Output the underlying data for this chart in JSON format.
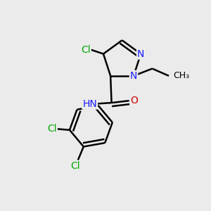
{
  "background_color": "#ebebeb",
  "bond_color": "#000000",
  "bond_width": 1.8,
  "atom_colors": {
    "C": "#000000",
    "H": "#000000",
    "N": "#1a1aff",
    "O": "#cc0000",
    "Cl": "#00aa00"
  },
  "font_size": 10,
  "fig_size": [
    3.0,
    3.0
  ],
  "dpi": 100
}
